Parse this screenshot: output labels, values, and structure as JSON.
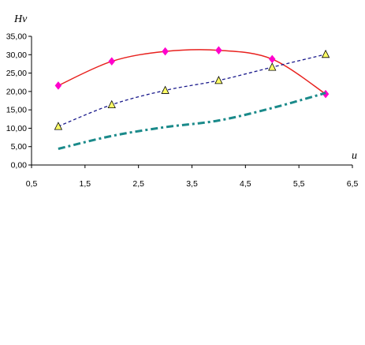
{
  "chart_data": {
    "type": "line",
    "title": "",
    "xlabel": "u",
    "ylabel": "Hv",
    "xlim": [
      0.5,
      6.5
    ],
    "ylim": [
      0,
      35
    ],
    "x_ticks": [
      "0,5",
      "1,5",
      "2,5",
      "3,5",
      "4,5",
      "5,5",
      "6,5"
    ],
    "x_tick_values": [
      0.5,
      1.5,
      2.5,
      3.5,
      4.5,
      5.5,
      6.5
    ],
    "y_ticks": [
      "0,00",
      "5,00",
      "10,00",
      "15,00",
      "20,00",
      "25,00",
      "30,00",
      "35,00"
    ],
    "y_tick_values": [
      0,
      5,
      10,
      15,
      20,
      25,
      30,
      35
    ],
    "grid": false,
    "legend": "none",
    "series": [
      {
        "color": "#e8211e",
        "line_style": "solid",
        "marker": "diamond",
        "marker_color": "#ff00cc",
        "smooth": true,
        "x": [
          1,
          2,
          3,
          4,
          5,
          6
        ],
        "values": [
          21.6,
          28.2,
          30.9,
          31.2,
          28.8,
          19.3
        ]
      },
      {
        "color": "#1a1a8c",
        "line_style": "dashed",
        "marker": "triangle",
        "marker_color": "#ffff66",
        "smooth": true,
        "x": [
          1,
          2,
          3,
          4,
          5,
          6
        ],
        "values": [
          10.5,
          16.4,
          20.3,
          23.0,
          26.6,
          30.1
        ]
      },
      {
        "color": "#1a8a8a",
        "line_style": "dash-dot",
        "marker": "none",
        "marker_color": "",
        "smooth": true,
        "x": [
          1,
          2,
          3,
          4,
          5,
          6
        ],
        "values": [
          4.4,
          7.9,
          10.3,
          12.1,
          15.5,
          19.6
        ]
      }
    ]
  }
}
